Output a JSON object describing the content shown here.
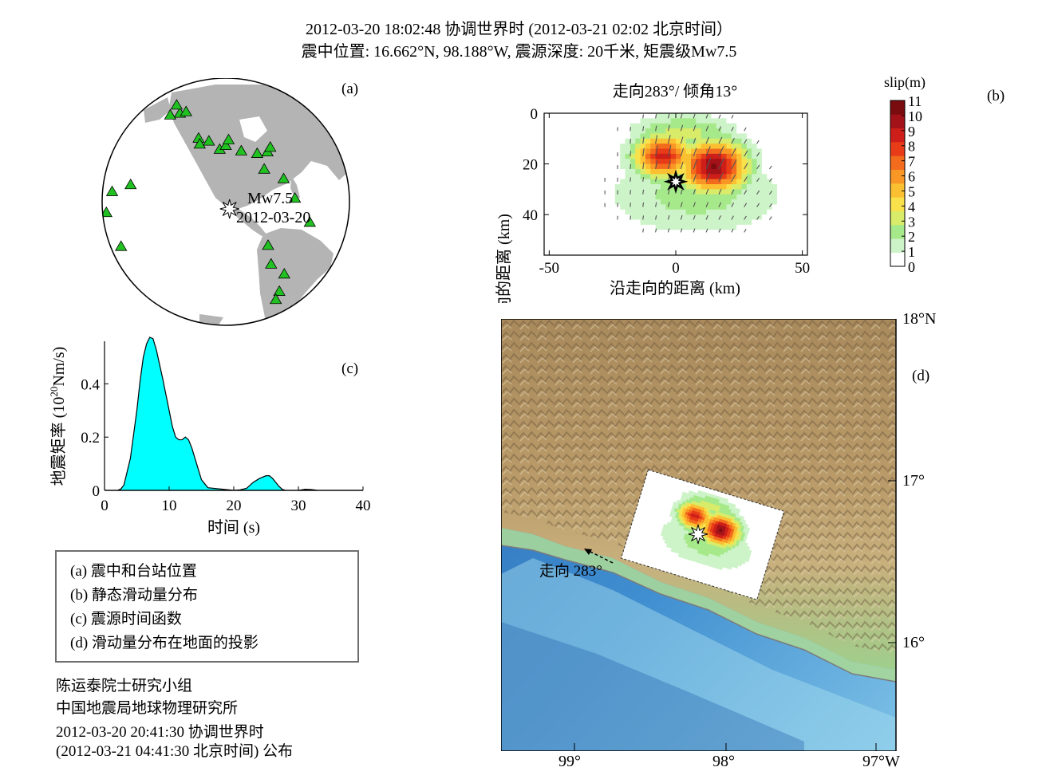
{
  "header": {
    "line1": "2012-03-20 18:02:48 协调世界时 (2012-03-21 02:02 北京时间）",
    "line2": "震中位置: 16.662°N, 98.188°W, 震源深度: 20千米, 矩震级Mw7.5"
  },
  "panel_a": {
    "label": "(a)",
    "event_label": "Mw7.5",
    "event_date": "2012-03-20",
    "colors": {
      "land": "#b4b4b4",
      "ocean": "#ffffff",
      "station": "#22c122"
    }
  },
  "panel_b": {
    "label": "(b)",
    "title": "走向283°/ 倾角13°",
    "colorbar_title": "slip(m)",
    "colorbar_ticks": [
      "11",
      "10",
      "9",
      "8",
      "7",
      "6",
      "5",
      "4",
      "3",
      "2",
      "1",
      "0"
    ],
    "colorbar_colors": [
      "#ffffff",
      "#cdf3c8",
      "#a6e98a",
      "#d8ec6a",
      "#f9e14c",
      "#fbc031",
      "#f99726",
      "#f36b1c",
      "#e83b17",
      "#cd1e19",
      "#a31218",
      "#7a0b0f"
    ]
  },
  "panel_c": {
    "label": "(c)"
  },
  "panel_d": {
    "label": "(d)",
    "strike_label": "走向 283°",
    "lat_ticks": [
      "18°N",
      "17°",
      "16°"
    ],
    "lon_ticks": [
      "99°",
      "98°",
      "97°W"
    ]
  },
  "chart_data": [
    {
      "type": "scatter",
      "panel": "a",
      "title": "",
      "series": [
        {
          "name": "",
          "marker": "triangle",
          "values": [
            {
              "x": -150,
              "y": 61
            },
            {
              "x": -158,
              "y": 58
            },
            {
              "x": -145,
              "y": 63
            },
            {
              "x": -165,
              "y": 64
            },
            {
              "x": -120,
              "y": 50
            },
            {
              "x": -118,
              "y": 47
            },
            {
              "x": -112,
              "y": 49
            },
            {
              "x": -104,
              "y": 45
            },
            {
              "x": -100,
              "y": 47
            },
            {
              "x": -98,
              "y": 50
            },
            {
              "x": -90,
              "y": 44
            },
            {
              "x": -80,
              "y": 42
            },
            {
              "x": -73,
              "y": 42
            },
            {
              "x": -70,
              "y": 44
            },
            {
              "x": -78,
              "y": 34
            },
            {
              "x": -68,
              "y": 28
            },
            {
              "x": -64,
              "y": 18
            },
            {
              "x": -57,
              "y": 5
            },
            {
              "x": -80,
              "y": -2
            },
            {
              "x": -78,
              "y": -12
            },
            {
              "x": -70,
              "y": -19
            },
            {
              "x": -70,
              "y": -30
            },
            {
              "x": -70,
              "y": -36
            },
            {
              "x": -155,
              "y": 20
            },
            {
              "x": -170,
              "y": 12
            },
            {
              "x": -175,
              "y": 0
            },
            {
              "x": -160,
              "y": -12
            }
          ]
        },
        {
          "name": "",
          "marker": "star",
          "values": [
            {
              "x": -98.188,
              "y": 16.662
            }
          ]
        }
      ]
    },
    {
      "type": "heatmap",
      "panel": "b",
      "title": "走向283°/ 倾角13°",
      "xlabel": "沿走向的距离 (km)",
      "ylabel": "沿倾向的距离 (km)",
      "xlim": [
        -52,
        52
      ],
      "ylim": [
        56,
        0
      ],
      "x_ticks": [
        -50,
        0,
        50
      ],
      "y_ticks": [
        0,
        20,
        40
      ],
      "clim": [
        0,
        11
      ],
      "colorbar_label": "slip(m)",
      "peaks": [
        {
          "x": -5,
          "y": 17,
          "sigma_x": 8,
          "sigma_y": 6,
          "slip": 9.5
        },
        {
          "x": 15,
          "y": 21,
          "sigma_x": 9,
          "sigma_y": 7,
          "slip": 11
        },
        {
          "x": 3,
          "y": 8,
          "sigma_x": 14,
          "sigma_y": 5,
          "slip": 3.5
        },
        {
          "x": 8,
          "y": 32,
          "sigma_x": 24,
          "sigma_y": 11,
          "slip": 2.5
        }
      ],
      "hypocenter": {
        "x": 0,
        "y": 27
      }
    },
    {
      "type": "area",
      "panel": "c",
      "title": "",
      "xlabel": "时间 (s)",
      "ylabel": "地震矩率 (10^20Nm/s)",
      "ylabel_base": "地震矩率 (10",
      "ylabel_exp": "20",
      "ylabel_unit": "Nm/s)",
      "xlim": [
        0,
        40
      ],
      "ylim": [
        0,
        0.56
      ],
      "x_ticks": [
        0,
        10,
        20,
        30,
        40
      ],
      "y_ticks": [
        0,
        0.2,
        0.4
      ],
      "fill": "#00ffff",
      "x": [
        0,
        2,
        2.5,
        3,
        4,
        5,
        5.5,
        6,
        6.5,
        7,
        7.5,
        8,
        9,
        10,
        10.5,
        11,
        11.5,
        12,
        12.5,
        13,
        13.5,
        14,
        14.5,
        15,
        16,
        20,
        21,
        22,
        23,
        24,
        25,
        25.5,
        26,
        27,
        27.5,
        28,
        30,
        31,
        32,
        33,
        35,
        40
      ],
      "values": [
        0,
        0,
        0.005,
        0.02,
        0.12,
        0.3,
        0.41,
        0.5,
        0.55,
        0.575,
        0.57,
        0.53,
        0.42,
        0.3,
        0.24,
        0.2,
        0.19,
        0.19,
        0.2,
        0.19,
        0.16,
        0.12,
        0.08,
        0.04,
        0.01,
        0,
        0.002,
        0.008,
        0.03,
        0.045,
        0.055,
        0.055,
        0.045,
        0.015,
        0.004,
        0,
        0,
        0.004,
        0.003,
        0,
        0,
        0
      ]
    }
  ],
  "legend": {
    "items": [
      "(a) 震中和台站位置",
      "(b) 静态滑动量分布",
      "(c) 震源时间函数",
      "(d) 滑动量分布在地面的投影"
    ]
  },
  "credits": {
    "line1": "陈运泰院士研究小组",
    "line2": "中国地震局地球物理研究所",
    "line3": "2012-03-20 20:41:30 协调世界时",
    "line4": "(2012-03-21 04:41:30 北京时间) 公布"
  }
}
